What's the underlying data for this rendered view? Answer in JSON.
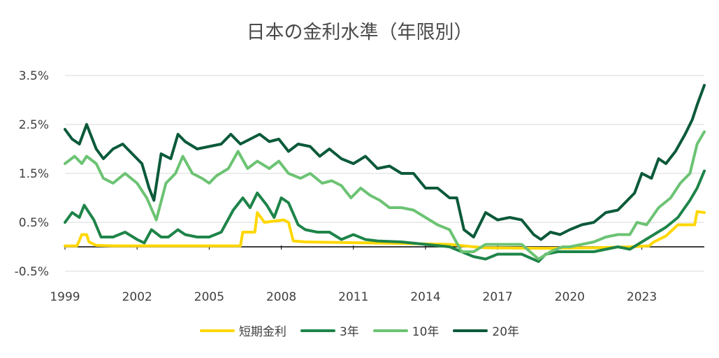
{
  "chart_data": {
    "type": "line",
    "title": "日本の金利水準（年限別）",
    "ylim": [
      -0.5,
      3.5
    ],
    "y_ticks": [
      "3.5%",
      "2.5%",
      "1.5%",
      "0.5%",
      "-0.5%"
    ],
    "y_tick_values": [
      3.5,
      2.5,
      1.5,
      0.5,
      -0.5
    ],
    "x_ticks": [
      "1999",
      "2002",
      "2005",
      "2008",
      "2011",
      "2014",
      "2017",
      "2020",
      "2023"
    ],
    "x_tick_values": [
      1999,
      2002,
      2005,
      2008,
      2011,
      2014,
      2017,
      2020,
      2023
    ],
    "xlim": [
      1999,
      2025.6
    ],
    "zero_line": true,
    "grid": "horizontal",
    "legend_position": "bottom",
    "series": [
      {
        "name": "短期金利",
        "color": "#FFD700",
        "points": [
          [
            1999,
            0.02
          ],
          [
            1999.5,
            0.02
          ],
          [
            1999.7,
            0.25
          ],
          [
            1999.9,
            0.25
          ],
          [
            2000.0,
            0.1
          ],
          [
            2000.3,
            0.03
          ],
          [
            2001,
            0.02
          ],
          [
            2004,
            0.02
          ],
          [
            2005,
            0.02
          ],
          [
            2006.3,
            0.02
          ],
          [
            2006.4,
            0.3
          ],
          [
            2006.9,
            0.3
          ],
          [
            2007.0,
            0.7
          ],
          [
            2007.3,
            0.5
          ],
          [
            2008.1,
            0.55
          ],
          [
            2008.3,
            0.5
          ],
          [
            2008.5,
            0.12
          ],
          [
            2009,
            0.1
          ],
          [
            2013,
            0.07
          ],
          [
            2015,
            0.05
          ],
          [
            2016.0,
            0.0
          ],
          [
            2016.5,
            -0.02
          ],
          [
            2019,
            -0.03
          ],
          [
            2021,
            -0.02
          ],
          [
            2022.5,
            0.0
          ],
          [
            2023.3,
            0.02
          ],
          [
            2023.5,
            0.1
          ],
          [
            2024.0,
            0.22
          ],
          [
            2024.5,
            0.45
          ],
          [
            2025.2,
            0.45
          ],
          [
            2025.3,
            0.72
          ],
          [
            2025.6,
            0.7
          ]
        ]
      },
      {
        "name": "3年",
        "color": "#1E8449",
        "points": [
          [
            1999,
            0.5
          ],
          [
            1999.3,
            0.7
          ],
          [
            1999.6,
            0.6
          ],
          [
            1999.8,
            0.85
          ],
          [
            2000.2,
            0.55
          ],
          [
            2000.5,
            0.2
          ],
          [
            2001,
            0.2
          ],
          [
            2001.5,
            0.3
          ],
          [
            2002,
            0.15
          ],
          [
            2002.3,
            0.08
          ],
          [
            2002.6,
            0.35
          ],
          [
            2003,
            0.2
          ],
          [
            2003.3,
            0.2
          ],
          [
            2003.7,
            0.35
          ],
          [
            2004,
            0.25
          ],
          [
            2004.5,
            0.2
          ],
          [
            2005,
            0.2
          ],
          [
            2005.5,
            0.3
          ],
          [
            2006,
            0.75
          ],
          [
            2006.4,
            1.0
          ],
          [
            2006.7,
            0.8
          ],
          [
            2007.0,
            1.1
          ],
          [
            2007.4,
            0.85
          ],
          [
            2007.7,
            0.6
          ],
          [
            2008.0,
            1.0
          ],
          [
            2008.3,
            0.9
          ],
          [
            2008.7,
            0.45
          ],
          [
            2009,
            0.35
          ],
          [
            2009.5,
            0.3
          ],
          [
            2010,
            0.3
          ],
          [
            2010.5,
            0.15
          ],
          [
            2011,
            0.25
          ],
          [
            2011.5,
            0.15
          ],
          [
            2012,
            0.12
          ],
          [
            2013,
            0.1
          ],
          [
            2014,
            0.05
          ],
          [
            2015.0,
            0.0
          ],
          [
            2015.5,
            -0.1
          ],
          [
            2016.0,
            -0.2
          ],
          [
            2016.5,
            -0.25
          ],
          [
            2017,
            -0.15
          ],
          [
            2018,
            -0.15
          ],
          [
            2018.7,
            -0.3
          ],
          [
            2019.0,
            -0.15
          ],
          [
            2019.5,
            -0.1
          ],
          [
            2020,
            -0.1
          ],
          [
            2021,
            -0.1
          ],
          [
            2022,
            0.0
          ],
          [
            2022.5,
            -0.05
          ],
          [
            2023.0,
            0.1
          ],
          [
            2023.5,
            0.25
          ],
          [
            2024.0,
            0.4
          ],
          [
            2024.5,
            0.6
          ],
          [
            2025.0,
            0.95
          ],
          [
            2025.3,
            1.2
          ],
          [
            2025.6,
            1.55
          ]
        ]
      },
      {
        "name": "10年",
        "color": "#6CC373",
        "points": [
          [
            1999,
            1.7
          ],
          [
            1999.4,
            1.85
          ],
          [
            1999.7,
            1.7
          ],
          [
            1999.9,
            1.85
          ],
          [
            2000.3,
            1.7
          ],
          [
            2000.6,
            1.4
          ],
          [
            2001,
            1.3
          ],
          [
            2001.5,
            1.5
          ],
          [
            2002,
            1.3
          ],
          [
            2002.4,
            1.0
          ],
          [
            2002.8,
            0.55
          ],
          [
            2003.2,
            1.3
          ],
          [
            2003.6,
            1.5
          ],
          [
            2003.9,
            1.85
          ],
          [
            2004.3,
            1.5
          ],
          [
            2004.7,
            1.4
          ],
          [
            2005,
            1.3
          ],
          [
            2005.3,
            1.45
          ],
          [
            2005.8,
            1.6
          ],
          [
            2006.2,
            1.95
          ],
          [
            2006.6,
            1.6
          ],
          [
            2007.0,
            1.75
          ],
          [
            2007.5,
            1.6
          ],
          [
            2007.9,
            1.75
          ],
          [
            2008.3,
            1.5
          ],
          [
            2008.8,
            1.4
          ],
          [
            2009.2,
            1.5
          ],
          [
            2009.7,
            1.3
          ],
          [
            2010.1,
            1.35
          ],
          [
            2010.5,
            1.25
          ],
          [
            2010.9,
            1.0
          ],
          [
            2011.3,
            1.2
          ],
          [
            2011.7,
            1.05
          ],
          [
            2012.1,
            0.95
          ],
          [
            2012.5,
            0.8
          ],
          [
            2013,
            0.8
          ],
          [
            2013.5,
            0.75
          ],
          [
            2014,
            0.6
          ],
          [
            2014.5,
            0.45
          ],
          [
            2015,
            0.35
          ],
          [
            2015.5,
            -0.1
          ],
          [
            2016,
            -0.1
          ],
          [
            2016.5,
            0.05
          ],
          [
            2017,
            0.05
          ],
          [
            2018,
            0.05
          ],
          [
            2018.7,
            -0.25
          ],
          [
            2019.2,
            -0.1
          ],
          [
            2019.7,
            0.0
          ],
          [
            2020,
            0.0
          ],
          [
            2020.5,
            0.05
          ],
          [
            2021,
            0.1
          ],
          [
            2021.5,
            0.2
          ],
          [
            2022,
            0.25
          ],
          [
            2022.5,
            0.25
          ],
          [
            2022.8,
            0.5
          ],
          [
            2023.2,
            0.45
          ],
          [
            2023.7,
            0.8
          ],
          [
            2024.2,
            1.0
          ],
          [
            2024.6,
            1.3
          ],
          [
            2025.0,
            1.5
          ],
          [
            2025.3,
            2.1
          ],
          [
            2025.6,
            2.35
          ]
        ]
      },
      {
        "name": "20年",
        "color": "#0B5A3A",
        "points": [
          [
            1999,
            2.4
          ],
          [
            1999.3,
            2.2
          ],
          [
            1999.6,
            2.1
          ],
          [
            1999.9,
            2.5
          ],
          [
            2000.3,
            2.0
          ],
          [
            2000.6,
            1.8
          ],
          [
            2001.0,
            2.0
          ],
          [
            2001.4,
            2.1
          ],
          [
            2001.8,
            1.9
          ],
          [
            2002.2,
            1.7
          ],
          [
            2002.5,
            1.2
          ],
          [
            2002.7,
            0.95
          ],
          [
            2003.0,
            1.9
          ],
          [
            2003.4,
            1.8
          ],
          [
            2003.7,
            2.3
          ],
          [
            2004.0,
            2.15
          ],
          [
            2004.5,
            2.0
          ],
          [
            2005.0,
            2.05
          ],
          [
            2005.5,
            2.1
          ],
          [
            2005.9,
            2.3
          ],
          [
            2006.3,
            2.1
          ],
          [
            2006.7,
            2.2
          ],
          [
            2007.1,
            2.3
          ],
          [
            2007.5,
            2.15
          ],
          [
            2007.9,
            2.2
          ],
          [
            2008.3,
            1.95
          ],
          [
            2008.7,
            2.1
          ],
          [
            2009.2,
            2.05
          ],
          [
            2009.6,
            1.85
          ],
          [
            2010.0,
            2.0
          ],
          [
            2010.5,
            1.8
          ],
          [
            2011.0,
            1.7
          ],
          [
            2011.5,
            1.85
          ],
          [
            2012.0,
            1.6
          ],
          [
            2012.5,
            1.65
          ],
          [
            2013.0,
            1.5
          ],
          [
            2013.5,
            1.5
          ],
          [
            2014.0,
            1.2
          ],
          [
            2014.5,
            1.2
          ],
          [
            2015.0,
            1.0
          ],
          [
            2015.3,
            1.0
          ],
          [
            2015.6,
            0.35
          ],
          [
            2016.0,
            0.2
          ],
          [
            2016.5,
            0.7
          ],
          [
            2017.0,
            0.55
          ],
          [
            2017.5,
            0.6
          ],
          [
            2018.0,
            0.55
          ],
          [
            2018.5,
            0.25
          ],
          [
            2018.8,
            0.15
          ],
          [
            2019.2,
            0.3
          ],
          [
            2019.6,
            0.25
          ],
          [
            2020.0,
            0.35
          ],
          [
            2020.5,
            0.45
          ],
          [
            2021.0,
            0.5
          ],
          [
            2021.5,
            0.7
          ],
          [
            2022.0,
            0.75
          ],
          [
            2022.3,
            0.9
          ],
          [
            2022.7,
            1.1
          ],
          [
            2023.0,
            1.5
          ],
          [
            2023.4,
            1.4
          ],
          [
            2023.7,
            1.8
          ],
          [
            2024.0,
            1.7
          ],
          [
            2024.4,
            1.95
          ],
          [
            2024.8,
            2.3
          ],
          [
            2025.1,
            2.6
          ],
          [
            2025.3,
            2.9
          ],
          [
            2025.6,
            3.3
          ]
        ]
      }
    ]
  }
}
